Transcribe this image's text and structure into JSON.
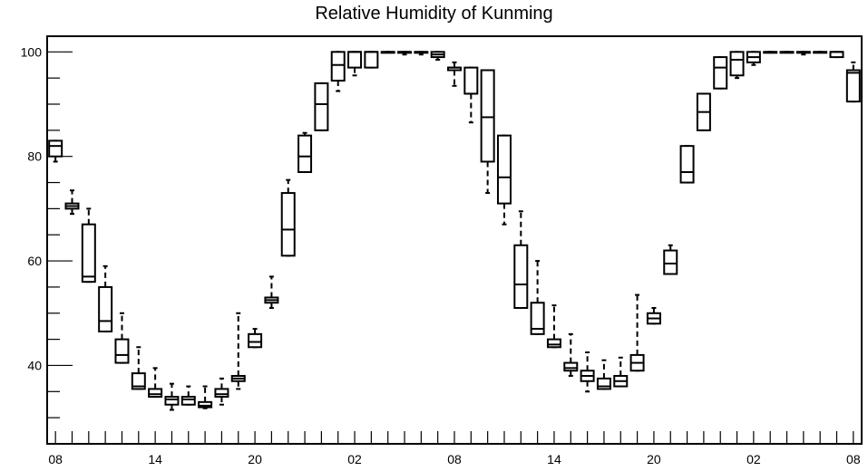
{
  "chart_data": {
    "type": "box",
    "title": "Relative Humidity of Kunming",
    "xlabel": "",
    "ylabel": "",
    "ylim": [
      25,
      103
    ],
    "yticks": [
      40,
      60,
      80,
      100
    ],
    "xticks": [
      {
        "hour": 0,
        "label": "08"
      },
      {
        "hour": 6,
        "label": "14"
      },
      {
        "hour": 12,
        "label": "20"
      },
      {
        "hour": 18,
        "label": "02"
      },
      {
        "hour": 24,
        "label": "08"
      },
      {
        "hour": 30,
        "label": "14"
      },
      {
        "hour": 36,
        "label": "20"
      },
      {
        "hour": 42,
        "label": "02"
      },
      {
        "hour": 48,
        "label": "08"
      }
    ],
    "xlim": [
      -0.5,
      48.5
    ],
    "grid": false,
    "boxes": [
      {
        "x": 0,
        "wlo": 79,
        "q1": 80,
        "med": 82,
        "q3": 83,
        "whi": 83
      },
      {
        "x": 1,
        "wlo": 69,
        "q1": 70,
        "med": 70.5,
        "q3": 71,
        "whi": 73.5
      },
      {
        "x": 2,
        "wlo": 56,
        "q1": 56,
        "med": 57,
        "q3": 67,
        "whi": 70
      },
      {
        "x": 3,
        "wlo": 46.5,
        "q1": 46.5,
        "med": 48.5,
        "q3": 55,
        "whi": 59
      },
      {
        "x": 4,
        "wlo": 40.5,
        "q1": 40.5,
        "med": 42,
        "q3": 45,
        "whi": 50
      },
      {
        "x": 5,
        "wlo": 35.5,
        "q1": 35.5,
        "med": 36,
        "q3": 38.5,
        "whi": 43.5
      },
      {
        "x": 6,
        "wlo": 34,
        "q1": 34,
        "med": 34.5,
        "q3": 35.5,
        "whi": 39.5
      },
      {
        "x": 7,
        "wlo": 31.5,
        "q1": 32.5,
        "med": 33.5,
        "q3": 34,
        "whi": 36.5
      },
      {
        "x": 8,
        "wlo": 32.5,
        "q1": 32.5,
        "med": 33.5,
        "q3": 34,
        "whi": 36
      },
      {
        "x": 9,
        "wlo": 31.8,
        "q1": 32,
        "med": 32.3,
        "q3": 33,
        "whi": 36
      },
      {
        "x": 10,
        "wlo": 32.5,
        "q1": 34,
        "med": 34.5,
        "q3": 35.5,
        "whi": 37.5
      },
      {
        "x": 11,
        "wlo": 35.5,
        "q1": 37,
        "med": 37.5,
        "q3": 38,
        "whi": 50
      },
      {
        "x": 12,
        "wlo": 43.5,
        "q1": 43.5,
        "med": 44.5,
        "q3": 46,
        "whi": 47
      },
      {
        "x": 13,
        "wlo": 51,
        "q1": 52,
        "med": 52.5,
        "q3": 53,
        "whi": 57
      },
      {
        "x": 14,
        "wlo": 61,
        "q1": 61,
        "med": 66,
        "q3": 73,
        "whi": 75.5
      },
      {
        "x": 15,
        "wlo": 77,
        "q1": 77,
        "med": 80,
        "q3": 84,
        "whi": 84.5
      },
      {
        "x": 16,
        "wlo": 85,
        "q1": 85,
        "med": 90,
        "q3": 94,
        "whi": 94
      },
      {
        "x": 17,
        "wlo": 92.5,
        "q1": 94.5,
        "med": 97.5,
        "q3": 100,
        "whi": 100
      },
      {
        "x": 18,
        "wlo": 95.5,
        "q1": 97,
        "med": 100,
        "q3": 100,
        "whi": 100
      },
      {
        "x": 19,
        "wlo": 97,
        "q1": 97,
        "med": 100,
        "q3": 100,
        "whi": 100
      },
      {
        "x": 20,
        "wlo": 100,
        "q1": 100,
        "med": 100,
        "q3": 100,
        "whi": 100
      },
      {
        "x": 21,
        "wlo": 99.5,
        "q1": 100,
        "med": 100,
        "q3": 100,
        "whi": 100
      },
      {
        "x": 22,
        "wlo": 99.5,
        "q1": 100,
        "med": 100,
        "q3": 100,
        "whi": 100
      },
      {
        "x": 23,
        "wlo": 98.5,
        "q1": 99,
        "med": 99.5,
        "q3": 100,
        "whi": 100
      },
      {
        "x": 24,
        "wlo": 93.5,
        "q1": 96.5,
        "med": 97,
        "q3": 97,
        "whi": 98
      },
      {
        "x": 25,
        "wlo": 86.5,
        "q1": 92,
        "med": 92,
        "q3": 97,
        "whi": 97
      },
      {
        "x": 26,
        "wlo": 73,
        "q1": 79,
        "med": 87.5,
        "q3": 96.5,
        "whi": 96.5
      },
      {
        "x": 27,
        "wlo": 67,
        "q1": 71,
        "med": 76,
        "q3": 84,
        "whi": 84
      },
      {
        "x": 28,
        "wlo": 51,
        "q1": 51,
        "med": 55.5,
        "q3": 63,
        "whi": 69.5
      },
      {
        "x": 29,
        "wlo": 46,
        "q1": 46,
        "med": 47,
        "q3": 52,
        "whi": 60
      },
      {
        "x": 30,
        "wlo": 43.5,
        "q1": 43.5,
        "med": 44,
        "q3": 45,
        "whi": 51.5
      },
      {
        "x": 31,
        "wlo": 38,
        "q1": 39,
        "med": 39.5,
        "q3": 40.5,
        "whi": 46
      },
      {
        "x": 32,
        "wlo": 35,
        "q1": 37,
        "med": 38,
        "q3": 39,
        "whi": 42.5
      },
      {
        "x": 33,
        "wlo": 35.5,
        "q1": 35.5,
        "med": 36,
        "q3": 37.5,
        "whi": 41
      },
      {
        "x": 34,
        "wlo": 36,
        "q1": 36,
        "med": 37,
        "q3": 38,
        "whi": 41.5
      },
      {
        "x": 35,
        "wlo": 39,
        "q1": 39,
        "med": 40.5,
        "q3": 42,
        "whi": 53.5
      },
      {
        "x": 36,
        "wlo": 48,
        "q1": 48,
        "med": 49,
        "q3": 50,
        "whi": 51
      },
      {
        "x": 37,
        "wlo": 57.5,
        "q1": 57.5,
        "med": 59.5,
        "q3": 62,
        "whi": 63
      },
      {
        "x": 38,
        "wlo": 75,
        "q1": 75,
        "med": 77,
        "q3": 82,
        "whi": 82
      },
      {
        "x": 39,
        "wlo": 85,
        "q1": 85,
        "med": 88.5,
        "q3": 92,
        "whi": 92
      },
      {
        "x": 40,
        "wlo": 93,
        "q1": 93,
        "med": 97,
        "q3": 99,
        "whi": 99
      },
      {
        "x": 41,
        "wlo": 95,
        "q1": 95.5,
        "med": 98.5,
        "q3": 100,
        "whi": 100
      },
      {
        "x": 42,
        "wlo": 97.5,
        "q1": 98,
        "med": 99,
        "q3": 100,
        "whi": 100
      },
      {
        "x": 43,
        "wlo": 100,
        "q1": 100,
        "med": 100,
        "q3": 100,
        "whi": 100
      },
      {
        "x": 44,
        "wlo": 100,
        "q1": 100,
        "med": 100,
        "q3": 100,
        "whi": 100
      },
      {
        "x": 45,
        "wlo": 99.5,
        "q1": 100,
        "med": 100,
        "q3": 100,
        "whi": 100
      },
      {
        "x": 46,
        "wlo": 100,
        "q1": 100,
        "med": 100,
        "q3": 100,
        "whi": 100
      },
      {
        "x": 47,
        "wlo": 99,
        "q1": 99,
        "med": 100,
        "q3": 100,
        "whi": 100
      },
      {
        "x": 48,
        "wlo": 90.5,
        "q1": 90.5,
        "med": 96,
        "q3": 96.5,
        "whi": 98
      }
    ]
  }
}
